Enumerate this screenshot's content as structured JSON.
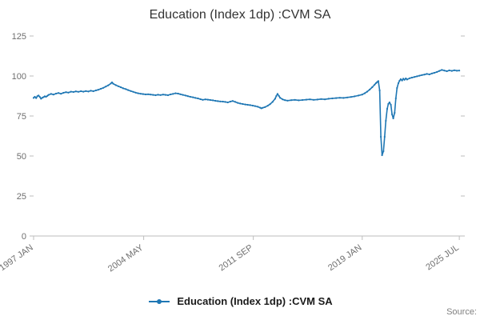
{
  "title": "Education (Index 1dp) :CVM SA",
  "legend": {
    "label": "Education (Index 1dp) :CVM SA"
  },
  "source_label": "Source:",
  "colors": {
    "line": "#1f77b4",
    "axis": "#bdbdbd",
    "tick_text": "#6e6e6e",
    "title_text": "#333333",
    "legend_text": "#1a1a1a",
    "source_text": "#808080"
  },
  "chart_data": {
    "type": "line",
    "title": "Education (Index 1dp) :CVM SA",
    "xlabel": "",
    "ylabel": "",
    "grid": false,
    "legend_position": "bottom",
    "x_domain": [
      1997.0,
      2025.6
    ],
    "ylim": [
      0,
      125
    ],
    "y_ticks": [
      0,
      25,
      50,
      75,
      100,
      125
    ],
    "x_ticks": [
      {
        "x": 1997.0,
        "label": "1997 JAN"
      },
      {
        "x": 2004.37,
        "label": "2004 MAY"
      },
      {
        "x": 2011.71,
        "label": "2011 SEP"
      },
      {
        "x": 2019.0,
        "label": "2019 JAN"
      },
      {
        "x": 2025.5,
        "label": "2025 JUL"
      }
    ],
    "series": [
      {
        "name": "Education (Index 1dp) :CVM SA",
        "color": "#1f77b4",
        "points": [
          [
            1997.0,
            86.3
          ],
          [
            1997.08,
            87.0
          ],
          [
            1997.17,
            86.2
          ],
          [
            1997.25,
            87.4
          ],
          [
            1997.33,
            87.8
          ],
          [
            1997.42,
            86.9
          ],
          [
            1997.5,
            85.8
          ],
          [
            1997.58,
            86.4
          ],
          [
            1997.67,
            86.8
          ],
          [
            1997.75,
            87.3
          ],
          [
            1997.83,
            87.0
          ],
          [
            1997.92,
            87.6
          ],
          [
            1998.0,
            88.2
          ],
          [
            1998.17,
            88.8
          ],
          [
            1998.33,
            88.4
          ],
          [
            1998.5,
            89.0
          ],
          [
            1998.67,
            89.4
          ],
          [
            1998.83,
            88.9
          ],
          [
            1999.0,
            89.5
          ],
          [
            1999.17,
            89.9
          ],
          [
            1999.33,
            89.6
          ],
          [
            1999.5,
            90.2
          ],
          [
            1999.67,
            90.0
          ],
          [
            1999.83,
            90.4
          ],
          [
            2000.0,
            90.1
          ],
          [
            2000.17,
            90.5
          ],
          [
            2000.33,
            90.2
          ],
          [
            2000.5,
            90.6
          ],
          [
            2000.67,
            90.3
          ],
          [
            2000.83,
            90.8
          ],
          [
            2001.0,
            90.5
          ],
          [
            2001.17,
            91.0
          ],
          [
            2001.33,
            91.4
          ],
          [
            2001.5,
            92.0
          ],
          [
            2001.67,
            92.6
          ],
          [
            2001.83,
            93.4
          ],
          [
            2002.0,
            94.2
          ],
          [
            2002.17,
            95.3
          ],
          [
            2002.25,
            96.0
          ],
          [
            2002.33,
            95.2
          ],
          [
            2002.5,
            94.3
          ],
          [
            2002.67,
            93.6
          ],
          [
            2002.83,
            93.0
          ],
          [
            2003.0,
            92.3
          ],
          [
            2003.17,
            91.8
          ],
          [
            2003.33,
            91.2
          ],
          [
            2003.5,
            90.6
          ],
          [
            2003.67,
            90.1
          ],
          [
            2003.83,
            89.6
          ],
          [
            2004.0,
            89.2
          ],
          [
            2004.17,
            88.9
          ],
          [
            2004.33,
            88.7
          ],
          [
            2004.5,
            88.5
          ],
          [
            2004.67,
            88.6
          ],
          [
            2004.83,
            88.4
          ],
          [
            2005.0,
            88.2
          ],
          [
            2005.17,
            88.0
          ],
          [
            2005.33,
            88.3
          ],
          [
            2005.5,
            88.1
          ],
          [
            2005.67,
            88.4
          ],
          [
            2005.83,
            88.2
          ],
          [
            2006.0,
            88.0
          ],
          [
            2006.17,
            88.5
          ],
          [
            2006.33,
            88.8
          ],
          [
            2006.5,
            89.2
          ],
          [
            2006.67,
            89.0
          ],
          [
            2006.83,
            88.6
          ],
          [
            2007.0,
            88.2
          ],
          [
            2007.17,
            87.8
          ],
          [
            2007.33,
            87.4
          ],
          [
            2007.5,
            87.0
          ],
          [
            2007.67,
            86.7
          ],
          [
            2007.83,
            86.3
          ],
          [
            2008.0,
            86.0
          ],
          [
            2008.17,
            85.5
          ],
          [
            2008.33,
            85.1
          ],
          [
            2008.5,
            85.4
          ],
          [
            2008.67,
            85.2
          ],
          [
            2008.83,
            85.0
          ],
          [
            2009.0,
            84.8
          ],
          [
            2009.17,
            84.5
          ],
          [
            2009.33,
            84.3
          ],
          [
            2009.5,
            84.1
          ],
          [
            2009.67,
            84.0
          ],
          [
            2009.83,
            83.8
          ],
          [
            2010.0,
            83.5
          ],
          [
            2010.17,
            84.0
          ],
          [
            2010.33,
            84.4
          ],
          [
            2010.5,
            83.8
          ],
          [
            2010.67,
            83.2
          ],
          [
            2010.83,
            82.8
          ],
          [
            2011.0,
            82.5
          ],
          [
            2011.17,
            82.2
          ],
          [
            2011.33,
            82.0
          ],
          [
            2011.5,
            81.8
          ],
          [
            2011.67,
            81.5
          ],
          [
            2011.83,
            81.2
          ],
          [
            2012.0,
            80.8
          ],
          [
            2012.17,
            80.2
          ],
          [
            2012.25,
            79.8
          ],
          [
            2012.33,
            80.1
          ],
          [
            2012.5,
            80.6
          ],
          [
            2012.67,
            81.4
          ],
          [
            2012.83,
            82.4
          ],
          [
            2013.0,
            83.8
          ],
          [
            2013.17,
            85.8
          ],
          [
            2013.25,
            87.5
          ],
          [
            2013.33,
            88.8
          ],
          [
            2013.42,
            87.6
          ],
          [
            2013.5,
            86.4
          ],
          [
            2013.67,
            85.4
          ],
          [
            2013.83,
            84.9
          ],
          [
            2014.0,
            84.6
          ],
          [
            2014.25,
            84.9
          ],
          [
            2014.5,
            85.1
          ],
          [
            2014.75,
            84.8
          ],
          [
            2015.0,
            85.0
          ],
          [
            2015.25,
            85.2
          ],
          [
            2015.5,
            85.4
          ],
          [
            2015.75,
            85.1
          ],
          [
            2016.0,
            85.3
          ],
          [
            2016.25,
            85.6
          ],
          [
            2016.5,
            85.4
          ],
          [
            2016.75,
            85.8
          ],
          [
            2017.0,
            86.0
          ],
          [
            2017.25,
            86.2
          ],
          [
            2017.5,
            86.4
          ],
          [
            2017.75,
            86.3
          ],
          [
            2018.0,
            86.6
          ],
          [
            2018.25,
            86.9
          ],
          [
            2018.5,
            87.3
          ],
          [
            2018.75,
            87.8
          ],
          [
            2019.0,
            88.4
          ],
          [
            2019.17,
            89.2
          ],
          [
            2019.33,
            90.2
          ],
          [
            2019.5,
            91.5
          ],
          [
            2019.67,
            93.0
          ],
          [
            2019.83,
            94.6
          ],
          [
            2019.92,
            95.5
          ],
          [
            2020.0,
            96.2
          ],
          [
            2020.08,
            96.8
          ],
          [
            2020.17,
            91.0
          ],
          [
            2020.25,
            62.0
          ],
          [
            2020.33,
            50.5
          ],
          [
            2020.42,
            53.0
          ],
          [
            2020.5,
            62.0
          ],
          [
            2020.58,
            72.0
          ],
          [
            2020.67,
            79.5
          ],
          [
            2020.75,
            82.5
          ],
          [
            2020.83,
            83.5
          ],
          [
            2020.92,
            82.0
          ],
          [
            2021.0,
            76.0
          ],
          [
            2021.08,
            73.5
          ],
          [
            2021.17,
            77.0
          ],
          [
            2021.25,
            86.0
          ],
          [
            2021.33,
            92.5
          ],
          [
            2021.42,
            95.5
          ],
          [
            2021.5,
            97.0
          ],
          [
            2021.58,
            98.0
          ],
          [
            2021.67,
            97.2
          ],
          [
            2021.75,
            98.3
          ],
          [
            2021.83,
            97.6
          ],
          [
            2021.92,
            98.5
          ],
          [
            2022.0,
            97.8
          ],
          [
            2022.17,
            98.6
          ],
          [
            2022.33,
            99.0
          ],
          [
            2022.5,
            99.4
          ],
          [
            2022.67,
            99.8
          ],
          [
            2022.83,
            100.2
          ],
          [
            2023.0,
            100.6
          ],
          [
            2023.17,
            100.9
          ],
          [
            2023.33,
            101.3
          ],
          [
            2023.5,
            101.0
          ],
          [
            2023.67,
            101.6
          ],
          [
            2023.83,
            102.0
          ],
          [
            2024.0,
            102.5
          ],
          [
            2024.17,
            103.2
          ],
          [
            2024.33,
            103.8
          ],
          [
            2024.5,
            103.4
          ],
          [
            2024.67,
            103.0
          ],
          [
            2024.83,
            103.5
          ],
          [
            2025.0,
            103.2
          ],
          [
            2025.17,
            103.6
          ],
          [
            2025.33,
            103.3
          ],
          [
            2025.5,
            103.4
          ]
        ]
      }
    ]
  }
}
